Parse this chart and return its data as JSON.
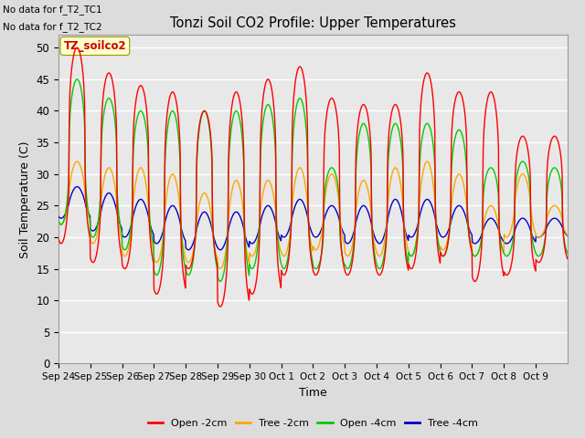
{
  "title": "Tonzi Soil CO2 Profile: Upper Temperatures",
  "ylabel": "Soil Temperature (C)",
  "xlabel": "Time",
  "text_no_data": [
    "No data for f_T2_TC1",
    "No data for f_T2_TC2"
  ],
  "legend_label": "TZ_soilco2",
  "ylim": [
    0,
    52
  ],
  "yticks": [
    0,
    5,
    10,
    15,
    20,
    25,
    30,
    35,
    40,
    45,
    50
  ],
  "series": {
    "open_2cm": {
      "label": "Open -2cm",
      "color": "#ff0000"
    },
    "tree_2cm": {
      "label": "Tree -2cm",
      "color": "#ffa500"
    },
    "open_4cm": {
      "label": "Open -4cm",
      "color": "#00cc00"
    },
    "tree_4cm": {
      "label": "Tree -4cm",
      "color": "#0000cc"
    }
  },
  "background_color": "#dcdcdc",
  "plot_bg_color": "#e8e8e8",
  "grid_color": "#ffffff",
  "xticklabels": [
    "Sep 24",
    "Sep 25",
    "Sep 26",
    "Sep 27",
    "Sep 28",
    "Sep 29",
    "Sep 30",
    "Oct 1",
    "Oct 2",
    "Oct 3",
    "Oct 4",
    "Oct 5",
    "Oct 6",
    "Oct 7",
    "Oct 8",
    "Oct 9"
  ],
  "n_days": 16,
  "pts_per_day": 96,
  "open_2cm_peaks": [
    50,
    46,
    44,
    43,
    40,
    43,
    45,
    47,
    42,
    41,
    41,
    46,
    43,
    43,
    36,
    36
  ],
  "open_2cm_troughs": [
    19,
    16,
    15,
    11,
    15,
    9,
    11,
    14,
    14,
    14,
    14,
    15,
    17,
    13,
    14,
    16
  ],
  "tree_2cm_peaks": [
    32,
    31,
    31,
    30,
    27,
    29,
    29,
    31,
    30,
    29,
    31,
    32,
    30,
    25,
    30,
    25
  ],
  "tree_2cm_troughs": [
    22,
    19,
    17,
    16,
    16,
    15,
    17,
    17,
    18,
    17,
    17,
    17,
    18,
    17,
    20,
    20
  ],
  "open_4cm_peaks": [
    45,
    42,
    40,
    40,
    40,
    40,
    41,
    42,
    31,
    38,
    38,
    38,
    37,
    31,
    32,
    31
  ],
  "open_4cm_troughs": [
    22,
    20,
    18,
    14,
    14,
    13,
    15,
    15,
    15,
    15,
    15,
    17,
    17,
    17,
    17,
    17
  ],
  "tree_4cm_peaks": [
    28,
    27,
    26,
    25,
    24,
    24,
    25,
    26,
    25,
    25,
    26,
    26,
    25,
    23,
    23,
    23
  ],
  "tree_4cm_troughs": [
    23,
    21,
    20,
    19,
    18,
    18,
    19,
    20,
    20,
    19,
    19,
    20,
    20,
    19,
    19,
    20
  ],
  "peak_phase": 0.583,
  "peak_sharpness": 3.0
}
